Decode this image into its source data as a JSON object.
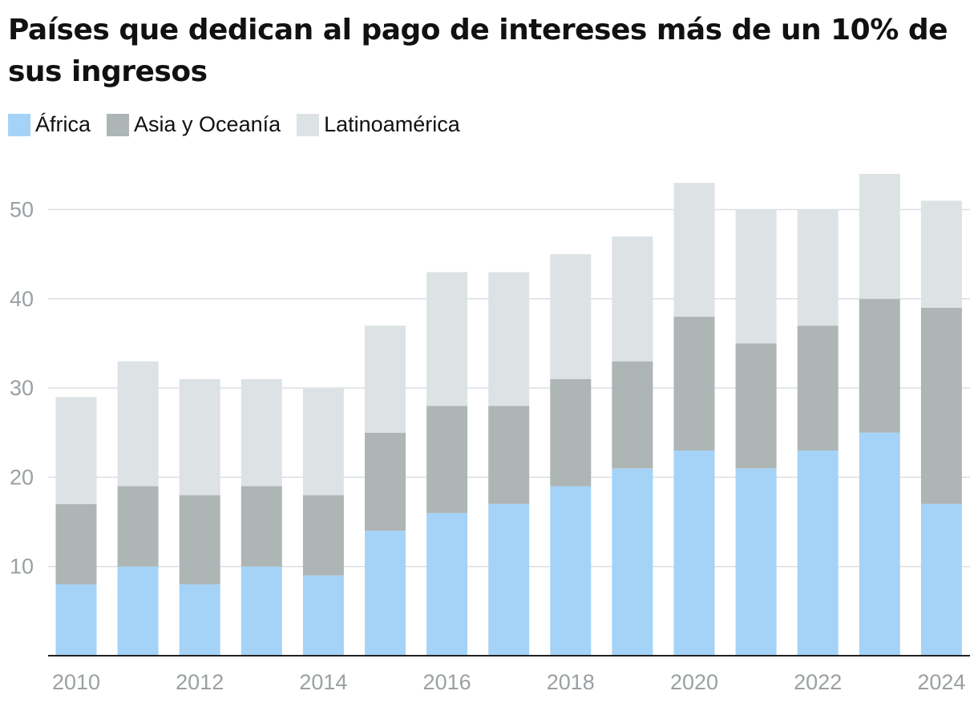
{
  "title": "Países que dedican al pago de intereses más de un 10% de sus ingresos",
  "chart_data": {
    "type": "bar",
    "stacked": true,
    "title": "Países que dedican al pago de intereses más de un 10% de sus ingresos",
    "xlabel": "",
    "ylabel": "",
    "categories": [
      "2010",
      "2011",
      "2012",
      "2013",
      "2014",
      "2015",
      "2016",
      "2017",
      "2018",
      "2019",
      "2020",
      "2021",
      "2022",
      "2023",
      "2024"
    ],
    "x_tick_labels": [
      "2010",
      "2012",
      "2014",
      "2016",
      "2018",
      "2020",
      "2022",
      "2024"
    ],
    "y_ticks": [
      10,
      20,
      30,
      40,
      50
    ],
    "ylim": [
      0,
      55
    ],
    "series": [
      {
        "name": "África",
        "color": "#a5d3f7",
        "values": [
          8,
          10,
          8,
          10,
          9,
          14,
          16,
          17,
          19,
          21,
          23,
          21,
          23,
          25,
          17
        ]
      },
      {
        "name": "Asia y Oceanía",
        "color": "#adb5b5",
        "values": [
          9,
          9,
          10,
          9,
          9,
          11,
          12,
          11,
          12,
          12,
          15,
          14,
          14,
          15,
          22
        ]
      },
      {
        "name": "Latinoamérica",
        "color": "#dde2e5",
        "values": [
          12,
          14,
          13,
          12,
          12,
          12,
          15,
          15,
          14,
          14,
          15,
          15,
          13,
          14,
          12
        ]
      }
    ],
    "legend_position": "top-left",
    "grid": true
  }
}
